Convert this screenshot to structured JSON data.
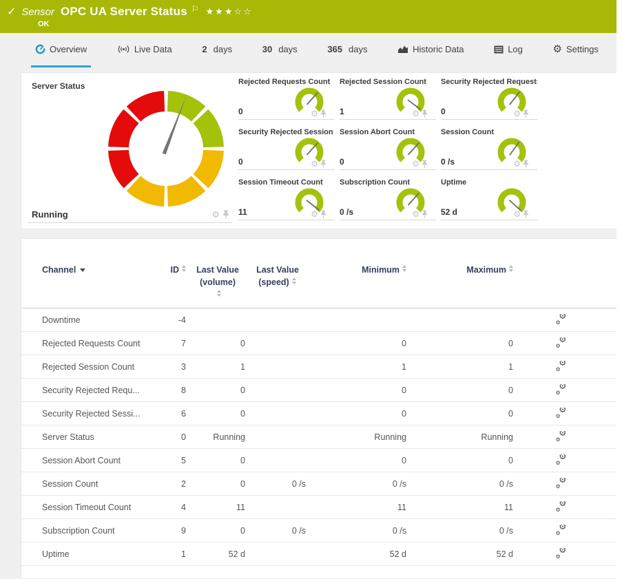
{
  "icons": {
    "check": "✓",
    "flag": "⚐",
    "gear": "⚙",
    "stars_text": "★★★☆☆"
  },
  "colors": {
    "header_bg": "#a9b806",
    "accent_blue": "#2aa5dc",
    "gauge_green": "#a4c20b",
    "gauge_yellow": "#f1b900",
    "gauge_red": "#e30b0b"
  },
  "header": {
    "kind": "Sensor",
    "title": "OPC UA Server Status",
    "status": "OK",
    "stars_filled": 3,
    "stars_total": 5
  },
  "tabs": {
    "items": [
      {
        "label": "Overview",
        "icon": "gauge-icon",
        "active": true
      },
      {
        "label": "Live Data",
        "icon": "broadcast-icon"
      },
      {
        "num": "2",
        "label": "days"
      },
      {
        "num": "30",
        "label": "days"
      },
      {
        "num": "365",
        "label": "days"
      },
      {
        "label": "Historic Data",
        "icon": "chart-icon"
      },
      {
        "label": "Log",
        "icon": "log-icon"
      },
      {
        "label": "Settings",
        "icon": "gear-icon"
      }
    ]
  },
  "overview": {
    "main_gauge": {
      "title": "Server Status",
      "value": "Running",
      "needle_deg": 21,
      "segments": [
        {
          "from": 2,
          "to": 43,
          "color": "#a4c20b"
        },
        {
          "from": 47,
          "to": 88,
          "color": "#a4c20b"
        },
        {
          "from": 92,
          "to": 133,
          "color": "#f1b900"
        },
        {
          "from": 137,
          "to": 178,
          "color": "#f1b900"
        },
        {
          "from": 182,
          "to": 223,
          "color": "#f1b900"
        },
        {
          "from": 227,
          "to": 268,
          "color": "#e30b0b"
        },
        {
          "from": 272,
          "to": 313,
          "color": "#e30b0b"
        },
        {
          "from": 317,
          "to": 358,
          "color": "#e30b0b"
        }
      ]
    },
    "mini_gauges": [
      {
        "title": "Rejected Requests Count",
        "value": "0",
        "needle_deg": 42
      },
      {
        "title": "Rejected Session Count",
        "value": "1",
        "needle_deg": 127
      },
      {
        "title": "Security Rejected Requests C...",
        "value": "0",
        "needle_deg": 38
      },
      {
        "title": "Security Rejected Session Co...",
        "value": "0",
        "needle_deg": 42
      },
      {
        "title": "Session Abort Count",
        "value": "0",
        "needle_deg": 42
      },
      {
        "title": "Session Count",
        "value": "0 /s",
        "needle_deg": 36
      },
      {
        "title": "Session Timeout Count",
        "value": "11",
        "needle_deg": 128
      },
      {
        "title": "Subscription Count",
        "value": "0 /s",
        "needle_deg": 42
      },
      {
        "title": "Uptime",
        "value": "52 d",
        "needle_deg": 132
      }
    ]
  },
  "channels_table": {
    "columns": [
      {
        "label": "Channel"
      },
      {
        "label": "ID"
      },
      {
        "label": "Last Value",
        "label2": "(volume)"
      },
      {
        "label": "Last Value",
        "label2": "(speed)"
      },
      {
        "label": "Minimum"
      },
      {
        "label": "Maximum"
      }
    ],
    "rows": [
      {
        "channel": "Downtime",
        "id": "-4",
        "volume": "",
        "speed": "",
        "min": "",
        "max": ""
      },
      {
        "channel": "Rejected Requests Count",
        "id": "7",
        "volume": "0",
        "speed": "",
        "min": "0",
        "max": "0"
      },
      {
        "channel": "Rejected Session Count",
        "id": "3",
        "volume": "1",
        "speed": "",
        "min": "1",
        "max": "1"
      },
      {
        "channel": "Security Rejected Requ...",
        "id": "8",
        "volume": "0",
        "speed": "",
        "min": "0",
        "max": "0"
      },
      {
        "channel": "Security Rejected Sessi...",
        "id": "6",
        "volume": "0",
        "speed": "",
        "min": "0",
        "max": "0"
      },
      {
        "channel": "Server Status",
        "id": "0",
        "volume": "Running",
        "speed": "",
        "min": "Running",
        "max": "Running"
      },
      {
        "channel": "Session Abort Count",
        "id": "5",
        "volume": "0",
        "speed": "",
        "min": "0",
        "max": "0"
      },
      {
        "channel": "Session Count",
        "id": "2",
        "volume": "0",
        "speed": "0 /s",
        "min": "0 /s",
        "max": "0 /s"
      },
      {
        "channel": "Session Timeout Count",
        "id": "4",
        "volume": "11",
        "speed": "",
        "min": "11",
        "max": "11"
      },
      {
        "channel": "Subscription Count",
        "id": "9",
        "volume": "0",
        "speed": "0 /s",
        "min": "0 /s",
        "max": "0 /s"
      },
      {
        "channel": "Uptime",
        "id": "1",
        "volume": "52 d",
        "speed": "",
        "min": "52 d",
        "max": "52 d"
      }
    ]
  }
}
